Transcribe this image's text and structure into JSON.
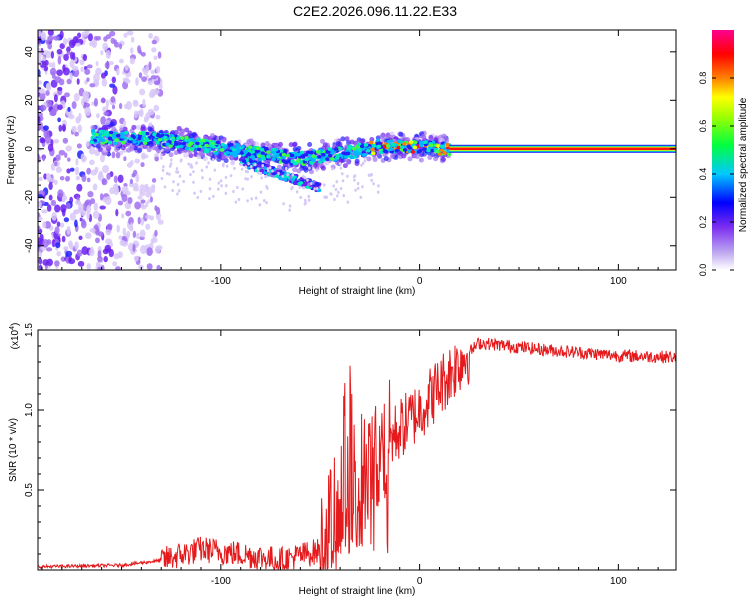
{
  "title": "C2E2.2026.096.11.22.E33",
  "chart_data": [
    {
      "type": "heatmap",
      "xlabel": "Height of straight line (km)",
      "ylabel": "Frequency (Hz)",
      "xlim": [
        -192,
        129
      ],
      "ylim": [
        -50,
        49
      ],
      "xticks": [
        -100,
        0,
        100
      ],
      "xtick_labels": [
        "-100",
        "0",
        "100"
      ],
      "yticks": [
        -40,
        -20,
        0,
        20,
        40
      ],
      "ytick_labels": [
        "-40",
        "-20",
        "0",
        "20",
        "40"
      ],
      "colorbar": {
        "label": "Normalized spectral amplitude",
        "range": [
          0,
          1
        ],
        "ticks": [
          0.0,
          0.2,
          0.4,
          0.6,
          0.8
        ],
        "tick_labels": [
          "0.0",
          "0.2",
          "0.4",
          "0.6",
          "0.8"
        ],
        "colors": [
          "#ffffff",
          "#8a2be2",
          "#0000ff",
          "#00e5e5",
          "#00ff00",
          "#ffff00",
          "#ff8000",
          "#ff0000",
          "#ff00ff"
        ]
      },
      "features": {
        "noise_region_x": [
          -192,
          -130
        ],
        "band": [
          {
            "x": -165,
            "f": 5
          },
          {
            "x": -130,
            "f": 4
          },
          {
            "x": -100,
            "f": 0
          },
          {
            "x": -80,
            "f": -2
          },
          {
            "x": -60,
            "f": -4
          },
          {
            "x": -40,
            "f": -2
          },
          {
            "x": -20,
            "f": 1
          },
          {
            "x": 0,
            "f": 1
          },
          {
            "x": 15,
            "f": 0
          }
        ],
        "lower_branch": [
          {
            "x": -90,
            "f": -5
          },
          {
            "x": -65,
            "f": -12
          },
          {
            "x": -50,
            "f": -16
          }
        ],
        "steady_line": {
          "x_start": 15,
          "x_end": 129,
          "f": 0
        }
      }
    },
    {
      "type": "line",
      "xlabel": "Height of straight line (km)",
      "ylabel": "SNR (10 * v/v)",
      "yscale_label": "(x10",
      "yscale_exp": "4",
      "xlim": [
        -192,
        129
      ],
      "ylim": [
        0,
        1.5
      ],
      "xticks": [
        -100,
        0,
        100
      ],
      "xtick_labels": [
        "-100",
        "0",
        "100"
      ],
      "yticks": [
        0.5,
        1.0,
        1.5
      ],
      "ytick_labels": [
        "0.5",
        "1.0",
        "1.5"
      ],
      "color": "#e41a1c",
      "series": [
        {
          "name": "SNR",
          "profile": [
            {
              "x": -192,
              "y": 0.02
            },
            {
              "x": -150,
              "y": 0.03
            },
            {
              "x": -130,
              "y": 0.06
            },
            {
              "x": -110,
              "y": 0.13
            },
            {
              "x": -90,
              "y": 0.1
            },
            {
              "x": -70,
              "y": 0.06
            },
            {
              "x": -50,
              "y": 0.12
            },
            {
              "x": -40,
              "y": 0.4
            },
            {
              "x": -30,
              "y": 0.6
            },
            {
              "x": -20,
              "y": 0.75
            },
            {
              "x": -10,
              "y": 0.88
            },
            {
              "x": 0,
              "y": 1.0
            },
            {
              "x": 10,
              "y": 1.15
            },
            {
              "x": 20,
              "y": 1.3
            },
            {
              "x": 30,
              "y": 1.42
            },
            {
              "x": 45,
              "y": 1.4
            },
            {
              "x": 60,
              "y": 1.38
            },
            {
              "x": 80,
              "y": 1.36
            },
            {
              "x": 100,
              "y": 1.34
            },
            {
              "x": 129,
              "y": 1.33
            }
          ]
        }
      ]
    }
  ]
}
